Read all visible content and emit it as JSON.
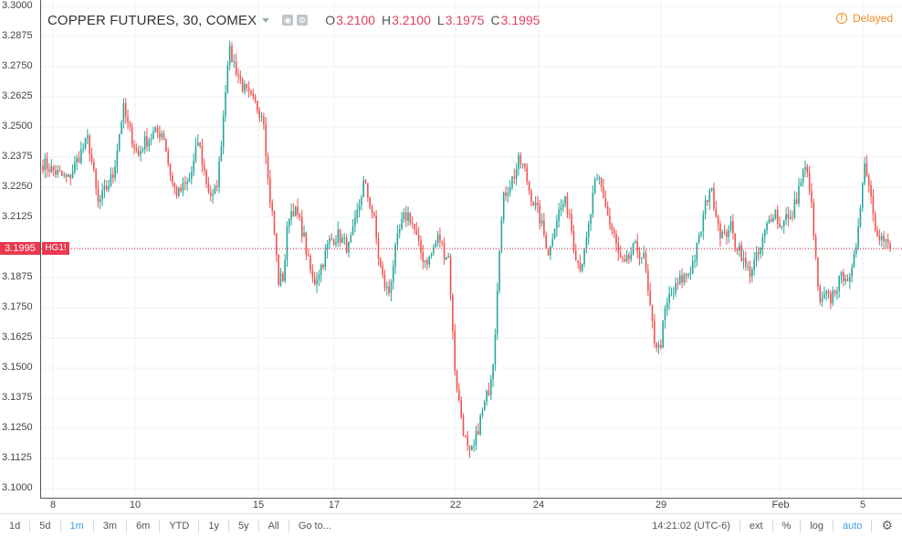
{
  "header": {
    "title": "COPPER FUTURES, 30, COMEX",
    "ohlc": [
      {
        "key": "O",
        "value": "3.2100"
      },
      {
        "key": "H",
        "value": "3.2100"
      },
      {
        "key": "L",
        "value": "3.1975"
      },
      {
        "key": "C",
        "value": "3.1995"
      }
    ],
    "delayed_label": "Delayed",
    "delayed_icon": "!"
  },
  "last_price": {
    "value": "3.1995",
    "symbol": "HG1!",
    "color": "#e8394f"
  },
  "colors": {
    "up": "#26a69a",
    "down": "#ef5350",
    "grid": "#eef1f4",
    "axis": "#555555",
    "accent": "#3aa0e0"
  },
  "toolbar": {
    "ranges": [
      "1d",
      "5d",
      "1m",
      "3m",
      "6m",
      "YTD",
      "1y",
      "5y",
      "All"
    ],
    "active_range": "1m",
    "goto_label": "Go to...",
    "time": "14:21:02 (UTC-6)",
    "right_buttons": [
      "ext",
      "%",
      "log",
      "auto"
    ],
    "active_right": "auto",
    "settings_icon": "gear-icon"
  },
  "chart_data": {
    "type": "candlestick",
    "title": "COPPER FUTURES, 30, COMEX",
    "xlabel": "",
    "ylabel": "",
    "ylim": [
      3.0975,
      3.3025
    ],
    "y_ticks": [
      "3.3000",
      "3.2875",
      "3.2750",
      "3.2625",
      "3.2500",
      "3.2375",
      "3.2250",
      "3.2125",
      "3.2000",
      "3.1875",
      "3.1750",
      "3.1625",
      "3.1500",
      "3.1375",
      "3.1250",
      "3.1125",
      "3.1000"
    ],
    "x_ticks": [
      "8",
      "10",
      "15",
      "17",
      "22",
      "24",
      "29",
      "Feb",
      "5"
    ],
    "grid": true,
    "last_price": 3.1995,
    "anchors": [
      [
        0,
        3.235
      ],
      [
        2,
        3.232
      ],
      [
        5,
        3.228
      ],
      [
        7,
        3.237
      ],
      [
        9,
        3.245
      ],
      [
        10,
        3.232
      ],
      [
        11,
        3.218
      ],
      [
        12,
        3.222
      ],
      [
        13,
        3.226
      ],
      [
        14,
        3.23
      ],
      [
        16,
        3.258
      ],
      [
        17,
        3.25
      ],
      [
        19,
        3.238
      ],
      [
        20,
        3.243
      ],
      [
        22,
        3.247
      ],
      [
        24,
        3.248
      ],
      [
        25,
        3.235
      ],
      [
        26,
        3.225
      ],
      [
        27,
        3.222
      ],
      [
        28,
        3.225
      ],
      [
        29,
        3.227
      ],
      [
        30,
        3.234
      ],
      [
        31,
        3.245
      ],
      [
        32,
        3.233
      ],
      [
        33,
        3.224
      ],
      [
        34,
        3.22
      ],
      [
        35,
        3.23
      ],
      [
        36,
        3.255
      ],
      [
        37,
        3.282
      ],
      [
        38,
        3.277
      ],
      [
        40,
        3.266
      ],
      [
        42,
        3.26
      ],
      [
        44,
        3.255
      ],
      [
        45,
        3.225
      ],
      [
        46,
        3.21
      ],
      [
        47,
        3.186
      ],
      [
        48,
        3.188
      ],
      [
        49,
        3.214
      ],
      [
        50,
        3.216
      ],
      [
        51,
        3.212
      ],
      [
        52,
        3.205
      ],
      [
        53,
        3.193
      ],
      [
        54,
        3.185
      ],
      [
        55,
        3.19
      ],
      [
        56,
        3.195
      ],
      [
        57,
        3.202
      ],
      [
        58,
        3.204
      ],
      [
        59,
        3.205
      ],
      [
        60,
        3.202
      ],
      [
        61,
        3.2
      ],
      [
        62,
        3.207
      ],
      [
        63,
        3.217
      ],
      [
        64,
        3.227
      ],
      [
        65,
        3.22
      ],
      [
        66,
        3.212
      ],
      [
        67,
        3.195
      ],
      [
        68,
        3.185
      ],
      [
        69,
        3.181
      ],
      [
        70,
        3.195
      ],
      [
        71,
        3.206
      ],
      [
        72,
        3.212
      ],
      [
        73,
        3.214
      ],
      [
        74,
        3.208
      ],
      [
        75,
        3.2
      ],
      [
        76,
        3.195
      ],
      [
        77,
        3.195
      ],
      [
        78,
        3.2
      ],
      [
        79,
        3.205
      ],
      [
        80,
        3.198
      ],
      [
        81,
        3.196
      ],
      [
        82,
        3.153
      ],
      [
        83,
        3.136
      ],
      [
        84,
        3.123
      ],
      [
        85,
        3.113
      ],
      [
        86,
        3.117
      ],
      [
        87,
        3.127
      ],
      [
        88,
        3.134
      ],
      [
        89,
        3.142
      ],
      [
        90,
        3.157
      ],
      [
        91,
        3.2
      ],
      [
        92,
        3.222
      ],
      [
        93,
        3.226
      ],
      [
        94,
        3.23
      ],
      [
        95,
        3.236
      ],
      [
        96,
        3.233
      ],
      [
        97,
        3.224
      ],
      [
        98,
        3.218
      ],
      [
        99,
        3.213
      ],
      [
        100,
        3.205
      ],
      [
        101,
        3.197
      ],
      [
        102,
        3.21
      ],
      [
        103,
        3.215
      ],
      [
        104,
        3.219
      ],
      [
        105,
        3.215
      ],
      [
        106,
        3.2
      ],
      [
        107,
        3.192
      ],
      [
        108,
        3.197
      ],
      [
        109,
        3.21
      ],
      [
        110,
        3.225
      ],
      [
        111,
        3.228
      ],
      [
        112,
        3.22
      ],
      [
        113,
        3.21
      ],
      [
        114,
        3.204
      ],
      [
        115,
        3.195
      ],
      [
        116,
        3.192
      ],
      [
        117,
        3.196
      ],
      [
        118,
        3.2
      ],
      [
        119,
        3.198
      ],
      [
        120,
        3.195
      ],
      [
        121,
        3.175
      ],
      [
        122,
        3.162
      ],
      [
        123,
        3.157
      ],
      [
        124,
        3.172
      ],
      [
        125,
        3.18
      ],
      [
        126,
        3.182
      ],
      [
        127,
        3.186
      ],
      [
        128,
        3.188
      ],
      [
        129,
        3.19
      ],
      [
        130,
        3.196
      ],
      [
        131,
        3.204
      ],
      [
        132,
        3.216
      ],
      [
        133,
        3.225
      ],
      [
        134,
        3.218
      ],
      [
        135,
        3.207
      ],
      [
        136,
        3.204
      ],
      [
        137,
        3.21
      ],
      [
        138,
        3.202
      ],
      [
        139,
        3.2
      ],
      [
        140,
        3.192
      ],
      [
        141,
        3.19
      ],
      [
        142,
        3.194
      ],
      [
        143,
        3.198
      ],
      [
        144,
        3.206
      ],
      [
        145,
        3.212
      ],
      [
        146,
        3.216
      ],
      [
        147,
        3.208
      ],
      [
        148,
        3.214
      ],
      [
        149,
        3.21
      ],
      [
        150,
        3.218
      ],
      [
        151,
        3.226
      ],
      [
        152,
        3.233
      ],
      [
        153,
        3.225
      ],
      [
        154,
        3.198
      ],
      [
        155,
        3.175
      ],
      [
        156,
        3.18
      ],
      [
        157,
        3.178
      ],
      [
        158,
        3.183
      ],
      [
        159,
        3.186
      ],
      [
        160,
        3.19
      ],
      [
        161,
        3.185
      ],
      [
        162,
        3.197
      ],
      [
        163,
        3.218
      ],
      [
        164,
        3.236
      ],
      [
        165,
        3.224
      ],
      [
        166,
        3.21
      ],
      [
        167,
        3.205
      ],
      [
        168,
        3.202
      ],
      [
        169,
        3.199
      ]
    ],
    "series": [
      {
        "name": "",
        "ohlc_last": {
          "open": 3.21,
          "high": 3.21,
          "low": 3.1975,
          "close": 3.1995
        }
      }
    ]
  }
}
